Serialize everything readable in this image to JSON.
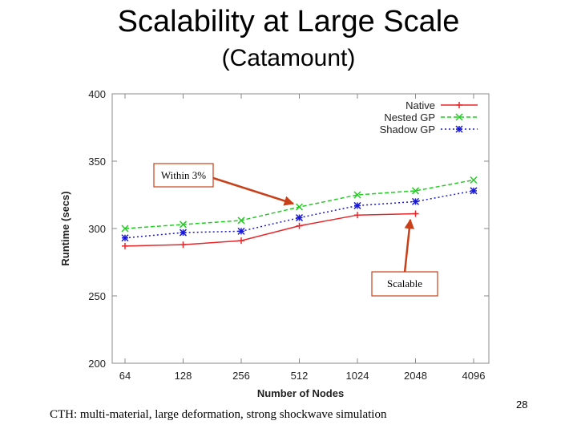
{
  "slide": {
    "title": "Scalability at Large Scale",
    "subtitle": "(Catamount)",
    "caption": "CTH: multi-material, large deformation, strong shockwave simulation",
    "page_number": "28"
  },
  "chart_data": {
    "type": "line",
    "xlabel": "Number of Nodes",
    "ylabel": "Runtime (secs)",
    "categories": [
      "64",
      "128",
      "256",
      "512",
      "1024",
      "2048",
      "4096"
    ],
    "ylim": [
      200,
      400
    ],
    "yticks": [
      200,
      250,
      300,
      350,
      400
    ],
    "grid": false,
    "legend_position": "top-right",
    "series": [
      {
        "name": "Native",
        "color": "#e8262a",
        "dash": "solid",
        "marker": "plus",
        "values": [
          287,
          288,
          291,
          302,
          310,
          311,
          null
        ]
      },
      {
        "name": "Nested GP",
        "color": "#22cc22",
        "dash": "dashed",
        "marker": "x",
        "values": [
          300,
          303,
          306,
          316,
          325,
          328,
          336
        ]
      },
      {
        "name": "Shadow GP",
        "color": "#1a1ad6",
        "dash": "dotted",
        "marker": "star",
        "values": [
          293,
          297,
          298,
          308,
          317,
          320,
          328
        ]
      }
    ],
    "annotations": [
      {
        "text": "Within 3%",
        "color": "#c8401a"
      },
      {
        "text": "Scalable",
        "color": "#c8401a"
      }
    ]
  }
}
